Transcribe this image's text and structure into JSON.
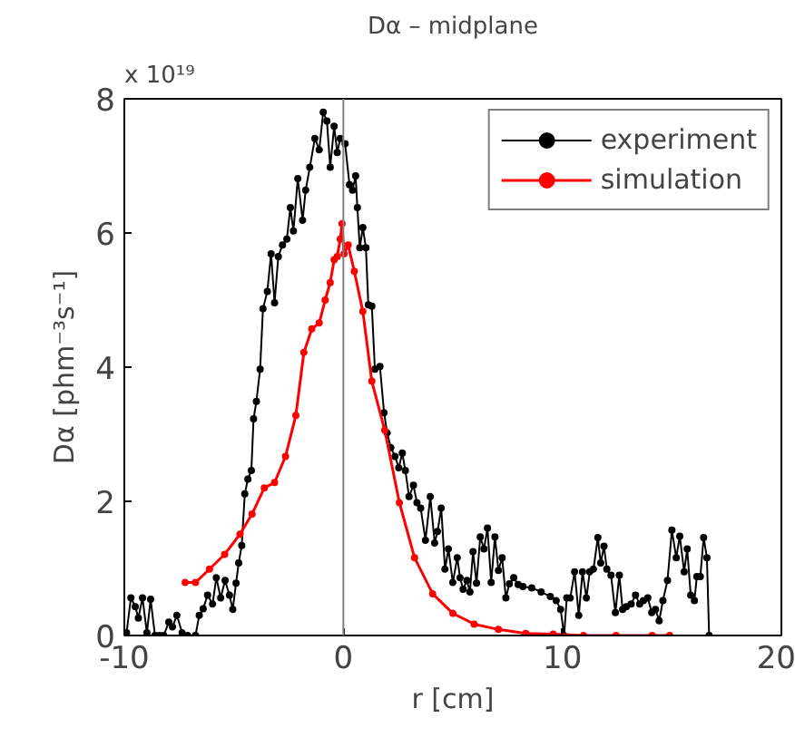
{
  "chart_data": {
    "type": "line",
    "title": "Dα – midplane",
    "xlabel": "r [cm]",
    "ylabel": "Dα [phm⁻³s⁻¹]",
    "annotations": [
      "x 10¹⁹"
    ],
    "xlim": [
      -10,
      20
    ],
    "ylim": [
      0,
      8
    ],
    "xticks": [
      -10,
      0,
      10,
      20
    ],
    "yticks": [
      0,
      2,
      4,
      6,
      8
    ],
    "grid": false,
    "legend": "top right",
    "marker": "circle",
    "line_style": "solid",
    "ref_lines": [
      {
        "axis": "x",
        "value": 0,
        "color": "#808080"
      }
    ],
    "series": [
      {
        "name": "experiment",
        "color": "#000000",
        "x": [
          -9.9,
          -9.7,
          -9.5,
          -9.36,
          -9.17,
          -8.97,
          -8.8,
          -8.6,
          -8.4,
          -8.2,
          -7.97,
          -7.8,
          -7.6,
          -7.36,
          -7.1,
          -6.75,
          -6.58,
          -6.4,
          -6.2,
          -5.97,
          -5.8,
          -5.6,
          -5.4,
          -5.2,
          -5.05,
          -4.9,
          -4.78,
          -4.64,
          -4.5,
          -4.36,
          -4.2,
          -4.1,
          -3.97,
          -3.8,
          -3.67,
          -3.47,
          -3.3,
          -3.14,
          -2.97,
          -2.78,
          -2.58,
          -2.42,
          -2.28,
          -2.08,
          -1.86,
          -1.72,
          -1.53,
          -1.3,
          -1.1,
          -0.92,
          -0.75,
          -0.6,
          -0.42,
          -0.28,
          -0.14,
          0.08,
          0.28,
          0.42,
          0.56,
          0.64,
          0.75,
          0.89,
          1.03,
          1.14,
          1.3,
          1.44,
          1.67,
          1.86,
          2.0,
          2.17,
          2.36,
          2.53,
          2.69,
          2.83,
          3.0,
          3.2,
          3.36,
          3.53,
          3.75,
          3.97,
          4.17,
          4.3,
          4.47,
          4.64,
          4.8,
          5.0,
          5.2,
          5.33,
          5.47,
          5.64,
          5.78,
          5.92,
          6.08,
          6.25,
          6.42,
          6.58,
          6.75,
          6.92,
          7.08,
          7.25,
          7.42,
          7.58,
          7.78,
          7.98,
          8.2,
          8.6,
          9.03,
          9.45,
          9.72,
          9.92,
          10.08,
          10.2,
          10.36,
          10.56,
          10.75,
          10.92,
          11.1,
          11.25,
          11.42,
          11.62,
          11.75,
          11.9,
          12.03,
          12.22,
          12.42,
          12.6,
          12.75,
          12.92,
          13.14,
          13.34,
          13.53,
          13.7,
          13.9,
          14.08,
          14.25,
          14.42,
          14.59,
          14.8,
          15.0,
          15.2,
          15.36,
          15.56,
          15.7,
          15.86,
          16.03,
          16.14,
          16.3,
          16.45,
          16.6,
          16.7
        ],
        "values": [
          0.04,
          0.56,
          0.43,
          0.26,
          0.56,
          0.04,
          0.54,
          0,
          0,
          0,
          0.2,
          0.13,
          0.3,
          0.04,
          0,
          0,
          0.3,
          0.4,
          0.6,
          0.47,
          0.86,
          0.56,
          0.82,
          0.6,
          0.39,
          0.78,
          1.08,
          1.34,
          2.11,
          2.33,
          2.46,
          3.23,
          3.49,
          3.97,
          4.87,
          5.13,
          5.69,
          4.96,
          5.65,
          5.82,
          5.91,
          6.38,
          6.03,
          6.81,
          6.19,
          6.64,
          6.98,
          7.41,
          7.24,
          7.8,
          7.67,
          6.98,
          7.59,
          7.2,
          7.41,
          7.33,
          6.72,
          6.64,
          6.85,
          6.38,
          5.78,
          6.08,
          5.78,
          4.93,
          4.91,
          3.97,
          4.01,
          3.32,
          3.02,
          2.8,
          2.67,
          2.5,
          2.72,
          2.46,
          2.07,
          2.24,
          1.98,
          1.9,
          1.42,
          2.07,
          1.38,
          1.55,
          1.9,
          0.99,
          1.29,
          0.79,
          1.16,
          0.86,
          0.69,
          0.82,
          0.65,
          1.25,
          0.78,
          1.47,
          1.29,
          1.6,
          0.79,
          1.47,
          0.97,
          1.16,
          0.56,
          0.77,
          0.86,
          0.76,
          0.73,
          0.71,
          0.65,
          0.58,
          0.52,
          0.39,
          0,
          0.56,
          0.56,
          0.95,
          0.3,
          0.95,
          0.56,
          0.95,
          0.99,
          1.46,
          1.08,
          1.33,
          0.99,
          0.9,
          0.34,
          0.9,
          0.39,
          0.43,
          0.47,
          0.6,
          0.47,
          0.52,
          0.56,
          0.34,
          0.39,
          0.22,
          0.52,
          0.82,
          1.57,
          1.16,
          1.48,
          0.95,
          1.29,
          0.6,
          0.52,
          0.88,
          0.88,
          1.46,
          1.16,
          0
        ]
      },
      {
        "name": "simulation",
        "color": "#ff0000",
        "x": [
          -7.22,
          -6.75,
          -6.11,
          -5.42,
          -4.72,
          -4.17,
          -3.61,
          -3.14,
          -2.64,
          -2.17,
          -1.8,
          -1.44,
          -1.1,
          -0.83,
          -0.6,
          -0.42,
          -0.28,
          -0.14,
          -0.06,
          0.03,
          0.22,
          0.5,
          0.89,
          1.3,
          1.89,
          2.56,
          3.25,
          4.08,
          5.0,
          5.97,
          7.08,
          8.33,
          9.58,
          10.97,
          12.45,
          14.1,
          14.9
        ],
        "values": [
          0.79,
          0.79,
          0.99,
          1.21,
          1.51,
          1.81,
          2.2,
          2.28,
          2.67,
          3.28,
          4.22,
          4.57,
          4.66,
          5.0,
          5.26,
          5.6,
          5.65,
          5.91,
          6.14,
          5.69,
          5.82,
          5.43,
          4.83,
          3.79,
          3.06,
          1.98,
          1.16,
          0.62,
          0.33,
          0.17,
          0.09,
          0.03,
          0.02,
          0,
          0,
          0,
          0
        ]
      }
    ]
  }
}
